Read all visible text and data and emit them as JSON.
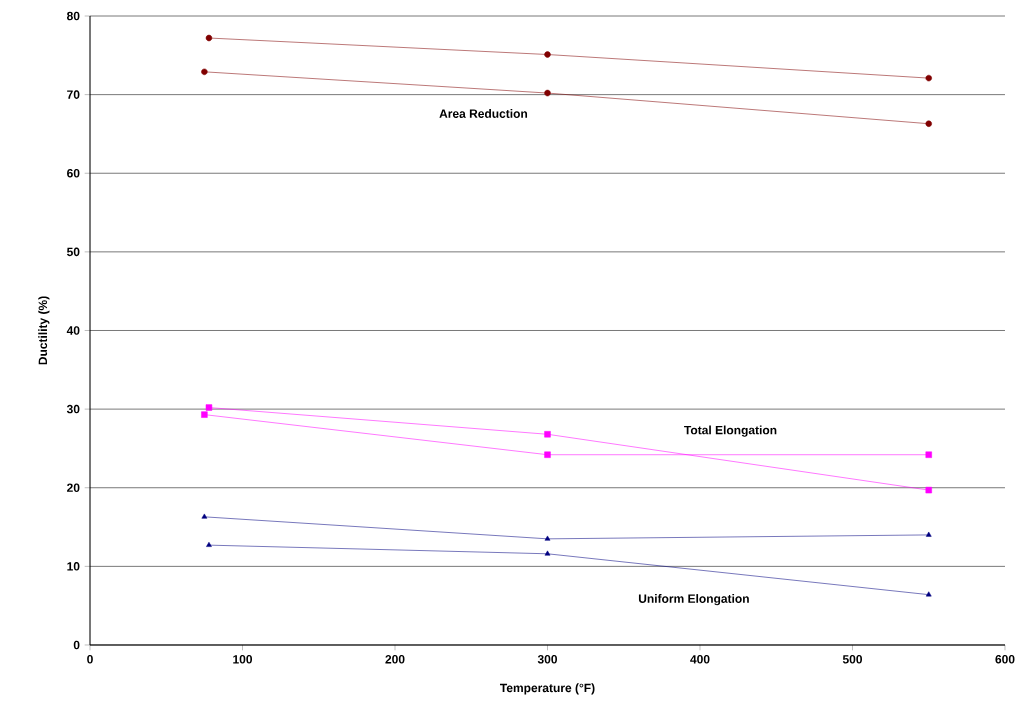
{
  "chart_data": {
    "type": "line",
    "xlabel": "Temperature (°F)",
    "ylabel": "Ductility (%)",
    "xlim": [
      0,
      600
    ],
    "xticks": [
      0,
      100,
      200,
      300,
      400,
      500,
      600
    ],
    "ylim": [
      0,
      80
    ],
    "yticks": [
      0,
      10,
      20,
      30,
      40,
      50,
      60,
      70,
      80
    ],
    "grid": "y",
    "series": [
      {
        "color": "#800000",
        "marker": "circle",
        "x": [
          75,
          300,
          550
        ],
        "values": [
          72.9,
          70.2,
          66.3
        ]
      },
      {
        "color": "#800000",
        "marker": "circle",
        "x": [
          78,
          300,
          550
        ],
        "values": [
          77.2,
          75.1,
          72.1
        ]
      },
      {
        "color": "#ff00ff",
        "marker": "square",
        "x": [
          75,
          300,
          550
        ],
        "values": [
          29.3,
          24.2,
          24.2
        ]
      },
      {
        "color": "#ff00ff",
        "marker": "square",
        "x": [
          78,
          300,
          550
        ],
        "values": [
          30.2,
          26.8,
          19.7
        ]
      },
      {
        "color": "#000080",
        "marker": "triangle",
        "x": [
          75,
          300,
          550
        ],
        "values": [
          16.3,
          13.5,
          14.0
        ]
      },
      {
        "color": "#000080",
        "marker": "triangle",
        "x": [
          78,
          300,
          550
        ],
        "values": [
          12.7,
          11.6,
          6.4
        ]
      }
    ],
    "annotations": [
      "Area Reduction",
      "Total Elongation",
      "Uniform Elongation"
    ]
  }
}
